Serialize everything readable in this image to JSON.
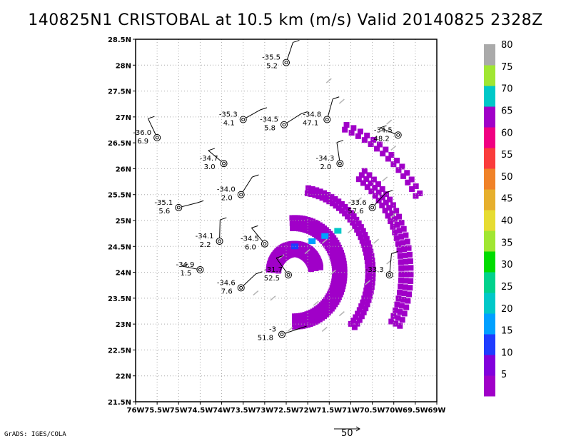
{
  "title": "140825N1 CRISTOBAL at 10.5 km (m/s) Valid 20140825 2328Z",
  "footer": {
    "credit": "GrADS: IGES/COLA",
    "reference_vector": "50"
  },
  "colors": {
    "frame": "#000000",
    "grid": "#aaaaaa",
    "barb": "#000000",
    "colorbar": [
      "#a000c8",
      "#8200dc",
      "#1e3cff",
      "#00a0ff",
      "#00c8c8",
      "#00d28c",
      "#00dc00",
      "#a0e632",
      "#e6dc32",
      "#e6af2d",
      "#f08228",
      "#fa3c3c",
      "#f00082",
      "#a000c8",
      "#00c8c8",
      "#a0e632",
      "#aaaaaa"
    ]
  },
  "chart_data": {
    "type": "map",
    "xlim": [
      -76,
      -69
    ],
    "ylim": [
      21.5,
      28.5
    ],
    "xticks": [
      {
        "value": -76,
        "label": "76W"
      },
      {
        "value": -75.5,
        "label": "75.5W"
      },
      {
        "value": -75,
        "label": "75W"
      },
      {
        "value": -74.5,
        "label": "74.5W"
      },
      {
        "value": -74,
        "label": "74W"
      },
      {
        "value": -73.5,
        "label": "73.5W"
      },
      {
        "value": -73,
        "label": "73W"
      },
      {
        "value": -72.5,
        "label": "72.5W"
      },
      {
        "value": -72,
        "label": "72W"
      },
      {
        "value": -71.5,
        "label": "71.5W"
      },
      {
        "value": -71,
        "label": "71W"
      },
      {
        "value": -70.5,
        "label": "70.5W"
      },
      {
        "value": -70,
        "label": "70W"
      },
      {
        "value": -69.5,
        "label": "69.5W"
      },
      {
        "value": -69,
        "label": "69W"
      }
    ],
    "yticks": [
      {
        "value": 21.5,
        "label": "21.5N"
      },
      {
        "value": 22,
        "label": "22N"
      },
      {
        "value": 22.5,
        "label": "22.5N"
      },
      {
        "value": 23,
        "label": "23N"
      },
      {
        "value": 23.5,
        "label": "23.5N"
      },
      {
        "value": 24,
        "label": "24N"
      },
      {
        "value": 24.5,
        "label": "24.5N"
      },
      {
        "value": 25,
        "label": "25N"
      },
      {
        "value": 25.5,
        "label": "25.5N"
      },
      {
        "value": 26,
        "label": "26N"
      },
      {
        "value": 26.5,
        "label": "26.5N"
      },
      {
        "value": 27,
        "label": "27N"
      },
      {
        "value": 27.5,
        "label": "27.5N"
      },
      {
        "value": 28,
        "label": "28N"
      },
      {
        "value": 28.5,
        "label": "28.5N"
      }
    ],
    "colorbar_labels": [
      "5",
      "10",
      "15",
      "20",
      "25",
      "30",
      "35",
      "40",
      "45",
      "50",
      "55",
      "60",
      "65",
      "70",
      "75",
      "80"
    ],
    "stations": [
      {
        "lon": -72.5,
        "lat": 28.05,
        "temp": "-35.5",
        "wind": "5.2"
      },
      {
        "lon": -73.5,
        "lat": 26.95,
        "temp": "-35.3",
        "wind": "4.1"
      },
      {
        "lon": -72.55,
        "lat": 26.85,
        "temp": "-34.5",
        "wind": "5.8"
      },
      {
        "lon": -71.55,
        "lat": 26.95,
        "temp": "-34.8",
        "wind": "47.1"
      },
      {
        "lon": -75.5,
        "lat": 26.6,
        "temp": "-36.0",
        "wind": "6.9"
      },
      {
        "lon": -69.9,
        "lat": 26.65,
        "temp": "-34.5",
        "wind": "48.2"
      },
      {
        "lon": -73.95,
        "lat": 26.1,
        "temp": "-34.7",
        "wind": "3.0"
      },
      {
        "lon": -71.25,
        "lat": 26.1,
        "temp": "-34.3",
        "wind": "2.0"
      },
      {
        "lon": -73.55,
        "lat": 25.5,
        "temp": "-34.0",
        "wind": "2.0"
      },
      {
        "lon": -75.0,
        "lat": 25.25,
        "temp": "-35.1",
        "wind": "5.6"
      },
      {
        "lon": -70.5,
        "lat": 25.25,
        "temp": "-33.6",
        "wind": "57.6"
      },
      {
        "lon": -74.05,
        "lat": 24.6,
        "temp": "-34.1",
        "wind": "2.2"
      },
      {
        "lon": -73.0,
        "lat": 24.55,
        "temp": "-34.5",
        "wind": "6.0"
      },
      {
        "lon": -74.5,
        "lat": 24.05,
        "temp": "-34.9",
        "wind": "1.5"
      },
      {
        "lon": -72.45,
        "lat": 23.95,
        "temp": "-31.7",
        "wind": "52.5"
      },
      {
        "lon": -70.1,
        "lat": 23.95,
        "temp": "-33.3",
        "wind": ""
      },
      {
        "lon": -73.55,
        "lat": 23.7,
        "temp": "-34.6",
        "wind": "7.6"
      },
      {
        "lon": -72.6,
        "lat": 22.8,
        "temp": "-3",
        "wind": "51.8"
      }
    ],
    "wind_field": [
      {
        "lon": -71.5,
        "lat": 27.7
      },
      {
        "lon": -71.2,
        "lat": 27.3
      },
      {
        "lon": -70.1,
        "lat": 26.9
      },
      {
        "lon": -70.0,
        "lat": 26.4
      },
      {
        "lon": -70.2,
        "lat": 25.8
      },
      {
        "lon": -70.8,
        "lat": 25.4
      },
      {
        "lon": -70.0,
        "lat": 25.1
      },
      {
        "lon": -71.0,
        "lat": 24.8
      },
      {
        "lon": -70.4,
        "lat": 24.6
      },
      {
        "lon": -70.1,
        "lat": 24.2
      },
      {
        "lon": -71.6,
        "lat": 24.6
      },
      {
        "lon": -72.0,
        "lat": 24.4
      },
      {
        "lon": -72.6,
        "lat": 24.3
      },
      {
        "lon": -71.4,
        "lat": 24.0
      },
      {
        "lon": -70.6,
        "lat": 23.8
      },
      {
        "lon": -72.8,
        "lat": 23.5
      },
      {
        "lon": -71.8,
        "lat": 23.4
      },
      {
        "lon": -71.2,
        "lat": 23.2
      },
      {
        "lon": -72.4,
        "lat": 22.9
      },
      {
        "lon": -71.6,
        "lat": 22.9
      },
      {
        "lon": -73.2,
        "lat": 23.6
      }
    ]
  }
}
